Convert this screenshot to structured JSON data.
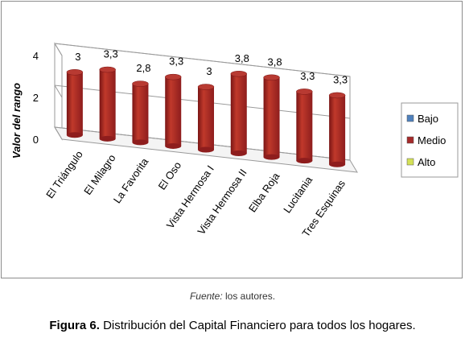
{
  "chart_data": {
    "type": "bar",
    "categories": [
      "El Triángulo",
      "El Milagro",
      "La Favorita",
      "El Oso",
      "Vista Hermosa I",
      "Vista Hermosa II",
      "Elba Roja",
      "Lucitania",
      "Tres Esquinas"
    ],
    "series": [
      {
        "name": "Bajo",
        "values": [
          null,
          null,
          null,
          null,
          null,
          null,
          null,
          null,
          null
        ],
        "color": "#4f81bd"
      },
      {
        "name": "Medio",
        "values": [
          3,
          3.3,
          2.8,
          3.3,
          3,
          3.8,
          3.8,
          3.3,
          3.3
        ],
        "color": "#a52a2a"
      },
      {
        "name": "Alto",
        "values": [
          null,
          null,
          null,
          null,
          null,
          null,
          null,
          null,
          null
        ],
        "color": "#d4e157"
      }
    ],
    "data_labels": [
      "3",
      "3,3",
      "2,8",
      "3,3",
      "3",
      "3,8",
      "3,8",
      "3,3",
      "3,3"
    ],
    "ylabel": "Valor del rango",
    "ylim": [
      0,
      4
    ],
    "yticks": [
      "0",
      "2",
      "4"
    ],
    "grid": true,
    "legend_position": "right",
    "style": "3d-cylinder"
  },
  "source": {
    "label": "Fuente:",
    "text": "los autores."
  },
  "caption": {
    "label": "Figura 6.",
    "text": "Distribución del Capital Financiero para todos los hogares."
  }
}
